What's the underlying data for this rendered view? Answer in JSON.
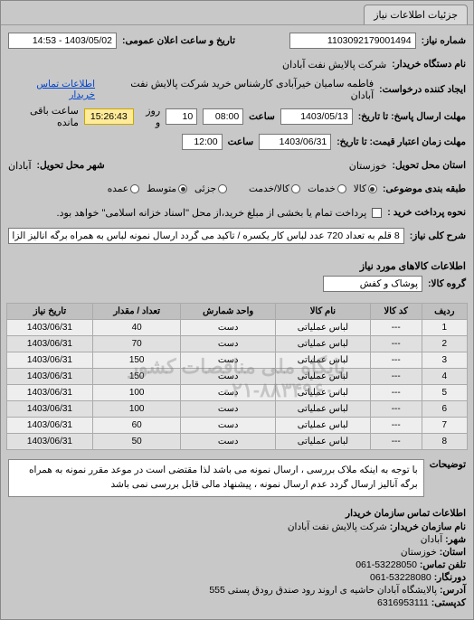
{
  "tab": {
    "label": "جزئیات اطلاعات نیاز"
  },
  "header": {
    "req_no_label": "شماره نیاز:",
    "req_no": "1103092179001494",
    "pub_datetime_label": "تاریخ و ساعت اعلان عمومی:",
    "pub_datetime": "1403/05/02 - 14:53",
    "buyer_label": "نام دستگاه خریدار:",
    "buyer": "شرکت پالایش نفت آبادان",
    "requester_label": "ایجاد کننده درخواست:",
    "requester": "فاطمه سامیان خیرآبادی کارشناس خرید شرکت پالایش نفت آبادان",
    "buyer_contact_link": "اطلاعات تماس خریدار",
    "deadline_label": "مهلت ارسال پاسخ: تا تاریخ:",
    "deadline_date": "1403/05/13",
    "time_label": "ساعت",
    "deadline_time": "08:00",
    "days_and": "و",
    "days_val": "10",
    "days_label": "روز و",
    "countdown": "15:26:43",
    "remaining_label": "ساعت باقی مانده",
    "validity_label": "مهلت زمان اعتبار قیمت: تا تاریخ:",
    "validity_date": "1403/06/31",
    "validity_time": "12:00",
    "delivery_state_label": "استان محل تحویل:",
    "delivery_state": "خوزستان",
    "delivery_city_label": "شهر محل تحویل:",
    "delivery_city": "آبادان",
    "budget_label": "طبقه بندی موضوعی:",
    "radio_kala": "کالا",
    "radio_khadamat": "خدمات",
    "radio_jozei": "جزئی",
    "radio_omde": "متوسط",
    "radio_omde2": "عمده",
    "radio_kala_khadmat": "کالا/خدمت",
    "payment_label": "نحوه پرداخت خرید :",
    "payment_text": "پرداخت تمام یا بخشی از مبلغ خرید،از محل \"اسناد خزانه اسلامی\" خواهد بود.",
    "summary_label": "شرح کلی نیاز:",
    "summary": "8 قلم به تعداد 720 عدد لباس کار یکسره / تاکید می گردد ارسال نمونه لباس به همراه برگه آنالیز الزامی می باشد"
  },
  "goods": {
    "title": "اطلاعات کالاهای مورد نیاز",
    "group_label": "گروه کالا:",
    "group": "پوشاک و کفش",
    "columns": [
      "ردیف",
      "کد کالا",
      "نام کالا",
      "واحد شمارش",
      "تعداد / مقدار",
      "تاریخ نیاز"
    ],
    "rows": [
      [
        "1",
        "---",
        "لباس عملیاتی",
        "دست",
        "40",
        "1403/06/31"
      ],
      [
        "2",
        "---",
        "لباس عملیاتی",
        "دست",
        "70",
        "1403/06/31"
      ],
      [
        "3",
        "---",
        "لباس عملیاتی",
        "دست",
        "150",
        "1403/06/31"
      ],
      [
        "4",
        "---",
        "لباس عملیاتی",
        "دست",
        "150",
        "1403/06/31"
      ],
      [
        "5",
        "---",
        "لباس عملیاتی",
        "دست",
        "100",
        "1403/06/31"
      ],
      [
        "6",
        "---",
        "لباس عملیاتی",
        "دست",
        "100",
        "1403/06/31"
      ],
      [
        "7",
        "---",
        "لباس عملیاتی",
        "دست",
        "60",
        "1403/06/31"
      ],
      [
        "8",
        "---",
        "لباس عملیاتی",
        "دست",
        "50",
        "1403/06/31"
      ]
    ],
    "watermark_line1": "پایگاه ملی مناقصات کشور",
    "watermark_line2": "۰۲۱-۸۸۳۴۹۶۰۰"
  },
  "notes": {
    "label": "توضیحات",
    "text": "با توجه به اینکه ملاک بررسی ، ارسال نمونه می باشد لذا مقتضی است در موعد مقرر نمونه به همراه برگه آنالیز ارسال گردد عدم ارسال نمونه ، پیشنهاد مالی قابل بررسی نمی باشد"
  },
  "footer": {
    "title": "اطلاعات تماس سازمان خریدار",
    "org_label": "نام سازمان خریدار:",
    "org": "شرکت پالایش نفت آبادان",
    "city_label": "شهر:",
    "city": "آبادان",
    "state_label": "استان:",
    "state": "خوزستان",
    "phone_label": "تلفن تماس:",
    "phone": "53228050-061",
    "fax_label": "دورنگار:",
    "fax": "53228080-061",
    "address_label": "آدرس:",
    "address": "پالایشگاه آبادان حاشیه ی اروند رود صندق رودق پستی 555",
    "postal_label": "کدپستی:",
    "postal": "6316953111"
  },
  "colors": {
    "bg": "#c8c8c8",
    "input_bg": "#ffffff",
    "countdown_bg": "#ffeb99",
    "table_header": "#c0c0c0",
    "link": "#0044cc"
  }
}
